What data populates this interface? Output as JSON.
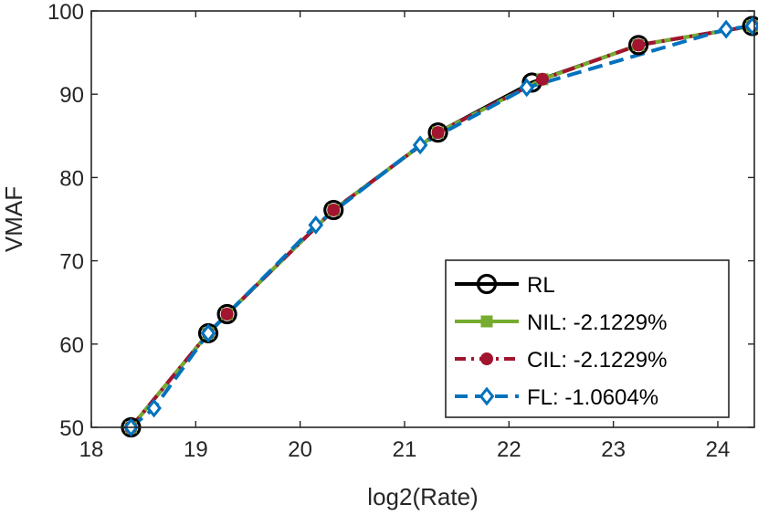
{
  "chart_data": {
    "type": "line",
    "title": "",
    "xlabel": "log2(Rate)",
    "ylabel": "VMAF",
    "xlim": [
      18,
      24.35
    ],
    "ylim": [
      50,
      100
    ],
    "xticks": [
      18,
      19,
      20,
      21,
      22,
      23,
      24
    ],
    "yticks": [
      50,
      60,
      70,
      80,
      90,
      100
    ],
    "grid": false,
    "legend_position": "bottom-right",
    "series": [
      {
        "name": "RL",
        "color": "#000000",
        "line_style": "solid",
        "marker": "circle",
        "x": [
          18.38,
          19.12,
          19.3,
          20.32,
          21.32,
          22.22,
          23.24,
          24.33
        ],
        "y": [
          50.0,
          61.3,
          63.6,
          76.1,
          85.4,
          91.4,
          95.9,
          98.2
        ]
      },
      {
        "name": "NIL: -2.1229%",
        "color": "#77AC30",
        "line_style": "solid",
        "marker": "square",
        "x": [
          18.38,
          19.12,
          19.3,
          20.32,
          21.32,
          22.32,
          23.24,
          24.33
        ],
        "y": [
          50.0,
          61.3,
          63.6,
          76.1,
          85.4,
          91.8,
          95.9,
          98.2
        ]
      },
      {
        "name": "CIL: -2.1229%",
        "color": "#A2142F",
        "line_style": "dashdot",
        "marker": "dot",
        "x": [
          18.38,
          19.12,
          19.3,
          20.32,
          21.32,
          22.32,
          23.24,
          24.33
        ],
        "y": [
          50.0,
          61.3,
          63.6,
          76.1,
          85.4,
          91.8,
          95.9,
          98.2
        ]
      },
      {
        "name": "FL: -1.0604%",
        "color": "#0072BD",
        "line_style": "dashed",
        "marker": "diamond",
        "x": [
          18.38,
          18.6,
          19.12,
          20.15,
          21.15,
          22.17,
          24.08,
          24.33
        ],
        "y": [
          50.0,
          52.3,
          61.3,
          74.3,
          83.9,
          90.8,
          97.8,
          98.2
        ]
      }
    ]
  }
}
